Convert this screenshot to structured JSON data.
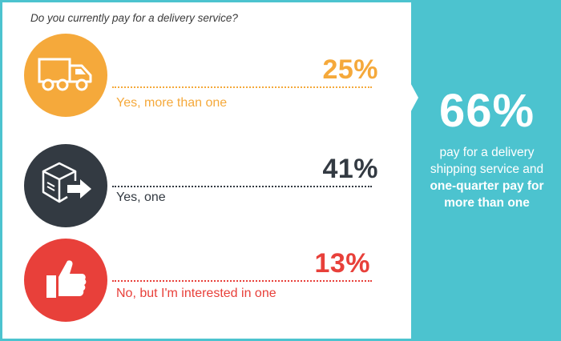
{
  "question": "Do you currently pay for a delivery service?",
  "options": [
    {
      "percent": "25%",
      "label": "Yes, more than one",
      "icon": "delivery-truck-icon",
      "color": "#f5a93b"
    },
    {
      "percent": "41%",
      "label": "Yes, one",
      "icon": "package-box-icon",
      "color": "#333a42"
    },
    {
      "percent": "13%",
      "label": "No, but I'm interested in one",
      "icon": "thumbs-up-icon",
      "color": "#e8403a"
    }
  ],
  "summary": {
    "percent": "66%",
    "text_line1": "pay for a delivery",
    "text_line2": "shipping service and",
    "bold_line1": "one-quarter pay for",
    "bold_line2": "more than one",
    "background": "#4cc3cf"
  }
}
